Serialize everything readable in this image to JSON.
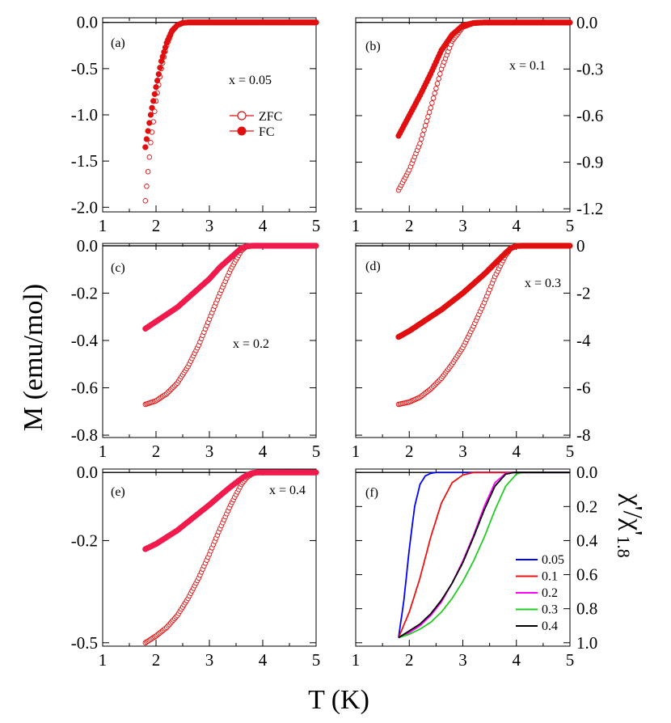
{
  "figure": {
    "xlabel": "T (K)",
    "ylabel_left": "M (emu/mol)",
    "ylabel_right": "χ'/χ'",
    "ylabel_right_sub": "1.8"
  },
  "colors": {
    "zfc": "#e01010",
    "fc": "#e01010",
    "fc_pink": "#f01a4c",
    "axis": "#000000",
    "s005": "#0000ff",
    "s01": "#ee1111",
    "s02": "#ff00ff",
    "s03": "#22cc22",
    "s04": "#000000"
  },
  "chart_data": [
    {
      "id": "a",
      "panel_label": "(a)",
      "type": "scatter",
      "note": "x = 0.05",
      "xlim": [
        1,
        5
      ],
      "ylim": [
        -2.05,
        0.05
      ],
      "xticks": [
        "1",
        "2",
        "3",
        "4",
        "5"
      ],
      "yticks": [
        {
          "v": 0.0,
          "t": "0.0"
        },
        {
          "v": -0.5,
          "t": "-0.5"
        },
        {
          "v": -1.0,
          "t": "-1.0"
        },
        {
          "v": -1.5,
          "t": "-1.5"
        },
        {
          "v": -2.0,
          "t": "-2.0"
        }
      ],
      "yaxis_side": "left",
      "legend": [
        {
          "name": "ZFC",
          "style": "open"
        },
        {
          "name": "FC",
          "style": "filled"
        }
      ],
      "series": [
        {
          "name": "ZFC",
          "style": "open",
          "color": "#e01010",
          "x": [
            1.8,
            1.9,
            2.0,
            2.1,
            2.2,
            2.3,
            2.4,
            2.5,
            2.6,
            2.8,
            3.0,
            4.0,
            5.0
          ],
          "y": [
            -1.93,
            -1.3,
            -0.85,
            -0.5,
            -0.25,
            -0.1,
            -0.03,
            -0.005,
            0.0,
            0.0,
            0.0,
            0.0,
            0.0
          ]
        },
        {
          "name": "FC",
          "style": "filled",
          "color": "#e01010",
          "x": [
            1.8,
            1.9,
            2.0,
            2.1,
            2.2,
            2.3,
            2.4,
            2.5,
            2.6,
            2.8,
            3.0,
            4.0,
            5.0
          ],
          "y": [
            -1.35,
            -1.0,
            -0.7,
            -0.42,
            -0.22,
            -0.09,
            -0.03,
            -0.005,
            0.0,
            0.0,
            0.0,
            0.0,
            0.0
          ]
        }
      ]
    },
    {
      "id": "b",
      "panel_label": "(b)",
      "type": "scatter",
      "note": "x = 0.1",
      "xlim": [
        1,
        5
      ],
      "ylim": [
        -1.22,
        0.03
      ],
      "xticks": [
        "1",
        "2",
        "3",
        "4",
        "5"
      ],
      "yticks": [
        {
          "v": 0.0,
          "t": "0.0"
        },
        {
          "v": -0.3,
          "t": "-0.3"
        },
        {
          "v": -0.6,
          "t": "-0.6"
        },
        {
          "v": -0.9,
          "t": "-0.9"
        },
        {
          "v": -1.2,
          "t": "-1.2"
        }
      ],
      "yaxis_side": "right",
      "series": [
        {
          "name": "ZFC",
          "style": "open",
          "color": "#e01010",
          "x": [
            1.8,
            2.0,
            2.2,
            2.4,
            2.6,
            2.8,
            3.0,
            3.2,
            3.4,
            4.0,
            5.0
          ],
          "y": [
            -1.08,
            -0.95,
            -0.78,
            -0.55,
            -0.3,
            -0.12,
            -0.03,
            -0.005,
            0.0,
            0.0,
            0.0
          ]
        },
        {
          "name": "FC",
          "style": "filled",
          "color": "#e01010",
          "x": [
            1.8,
            2.0,
            2.2,
            2.4,
            2.6,
            2.8,
            3.0,
            3.2,
            3.4,
            4.0,
            5.0
          ],
          "y": [
            -0.73,
            -0.6,
            -0.47,
            -0.33,
            -0.18,
            -0.08,
            -0.02,
            -0.004,
            0.0,
            0.0,
            0.0
          ]
        }
      ]
    },
    {
      "id": "c",
      "panel_label": "(c)",
      "type": "scatter",
      "note": "x = 0.2",
      "xlim": [
        1,
        5
      ],
      "ylim": [
        -0.81,
        0.01
      ],
      "xticks": [
        "1",
        "2",
        "3",
        "4",
        "5"
      ],
      "yticks": [
        {
          "v": 0.0,
          "t": "0.0"
        },
        {
          "v": -0.2,
          "t": "-0.2"
        },
        {
          "v": -0.4,
          "t": "-0.4"
        },
        {
          "v": -0.6,
          "t": "-0.6"
        },
        {
          "v": -0.8,
          "t": "-0.8"
        }
      ],
      "yaxis_side": "left",
      "series": [
        {
          "name": "ZFC",
          "style": "open",
          "color": "#e01010",
          "x": [
            1.8,
            2.0,
            2.2,
            2.4,
            2.6,
            2.8,
            3.0,
            3.2,
            3.4,
            3.6,
            3.7,
            3.8,
            4.0,
            5.0
          ],
          "y": [
            -0.67,
            -0.655,
            -0.625,
            -0.58,
            -0.51,
            -0.42,
            -0.31,
            -0.2,
            -0.1,
            -0.02,
            -0.003,
            0.0,
            0.0,
            0.0
          ]
        },
        {
          "name": "FC",
          "style": "filled",
          "color": "#f01a4c",
          "x": [
            1.8,
            2.0,
            2.2,
            2.4,
            2.6,
            2.8,
            3.0,
            3.2,
            3.4,
            3.6,
            3.7,
            3.8,
            4.0,
            5.0
          ],
          "y": [
            -0.35,
            -0.32,
            -0.29,
            -0.26,
            -0.22,
            -0.18,
            -0.14,
            -0.09,
            -0.05,
            -0.01,
            -0.002,
            0.0,
            0.0,
            0.0
          ]
        }
      ]
    },
    {
      "id": "d",
      "panel_label": "(d)",
      "type": "scatter",
      "note": "x = 0.3",
      "xlim": [
        1,
        5
      ],
      "ylim": [
        -8.1,
        0.1
      ],
      "xticks": [
        "1",
        "2",
        "3",
        "4",
        "5"
      ],
      "yticks": [
        {
          "v": 0,
          "t": "0"
        },
        {
          "v": -2,
          "t": "-2"
        },
        {
          "v": -4,
          "t": "-4"
        },
        {
          "v": -6,
          "t": "-6"
        },
        {
          "v": -8,
          "t": "-8"
        }
      ],
      "yaxis_side": "right",
      "series": [
        {
          "name": "ZFC",
          "style": "open",
          "color": "#e01010",
          "x": [
            1.8,
            2.0,
            2.2,
            2.4,
            2.6,
            2.8,
            3.0,
            3.2,
            3.4,
            3.6,
            3.8,
            3.9,
            4.0,
            4.1,
            5.0
          ],
          "y": [
            -6.7,
            -6.6,
            -6.4,
            -6.05,
            -5.6,
            -5.0,
            -4.3,
            -3.4,
            -2.4,
            -1.3,
            -0.4,
            -0.1,
            -0.01,
            0.0,
            0.0
          ]
        },
        {
          "name": "FC",
          "style": "filled",
          "color": "#e01010",
          "x": [
            1.8,
            2.0,
            2.2,
            2.4,
            2.6,
            2.8,
            3.0,
            3.2,
            3.4,
            3.6,
            3.8,
            3.9,
            4.0,
            4.1,
            5.0
          ],
          "y": [
            -3.85,
            -3.6,
            -3.3,
            -3.0,
            -2.7,
            -2.35,
            -2.0,
            -1.6,
            -1.2,
            -0.75,
            -0.3,
            -0.1,
            -0.01,
            0.0,
            0.0
          ]
        }
      ]
    },
    {
      "id": "e",
      "panel_label": "(e)",
      "type": "scatter",
      "note": "x = 0.4",
      "xlim": [
        1,
        5
      ],
      "ylim": [
        -0.51,
        0.01
      ],
      "xticks": [
        "1",
        "2",
        "3",
        "4",
        "5"
      ],
      "yticks": [
        {
          "v": 0.0,
          "t": "0.0"
        },
        {
          "v": -0.2,
          "t": "-0.2"
        },
        {
          "v": -0.5,
          "t": "-0.5"
        }
      ],
      "yaxis_side": "left",
      "series": [
        {
          "name": "ZFC",
          "style": "open",
          "color": "#e01010",
          "x": [
            1.8,
            2.0,
            2.2,
            2.4,
            2.6,
            2.8,
            3.0,
            3.2,
            3.4,
            3.6,
            3.7,
            3.8,
            3.9,
            4.0,
            5.0
          ],
          "y": [
            -0.5,
            -0.48,
            -0.455,
            -0.42,
            -0.37,
            -0.31,
            -0.24,
            -0.165,
            -0.095,
            -0.035,
            -0.015,
            -0.004,
            0.0,
            0.0,
            0.0
          ]
        },
        {
          "name": "FC",
          "style": "filled",
          "color": "#f01a4c",
          "x": [
            1.8,
            2.0,
            2.2,
            2.4,
            2.6,
            2.8,
            3.0,
            3.2,
            3.4,
            3.6,
            3.7,
            3.8,
            3.9,
            4.0,
            5.0
          ],
          "y": [
            -0.225,
            -0.21,
            -0.19,
            -0.17,
            -0.145,
            -0.12,
            -0.095,
            -0.068,
            -0.042,
            -0.018,
            -0.008,
            -0.002,
            0.0,
            0.0,
            0.0
          ]
        }
      ]
    },
    {
      "id": "f",
      "panel_label": "(f)",
      "type": "line",
      "xlim": [
        1,
        5
      ],
      "ylim": [
        -0.02,
        1.02
      ],
      "invert_y": true,
      "xticks": [
        "1",
        "2",
        "3",
        "4",
        "5"
      ],
      "yticks": [
        {
          "v": 0.0,
          "t": "0.0"
        },
        {
          "v": 0.2,
          "t": "0.2"
        },
        {
          "v": 0.4,
          "t": "0.4"
        },
        {
          "v": 0.6,
          "t": "0.6"
        },
        {
          "v": 0.8,
          "t": "0.8"
        },
        {
          "v": 1.0,
          "t": "1.0"
        }
      ],
      "yaxis_side": "right",
      "series": [
        {
          "name": "0.05",
          "color": "#0000ff",
          "x": [
            1.8,
            1.9,
            2.0,
            2.1,
            2.2,
            2.3,
            2.4,
            2.5,
            2.7,
            3.0,
            5.0
          ],
          "y": [
            0.97,
            0.75,
            0.45,
            0.2,
            0.07,
            0.02,
            0.005,
            0.0,
            0.0,
            0.0,
            0.0
          ]
        },
        {
          "name": "0.1",
          "color": "#ee1111",
          "x": [
            1.8,
            2.0,
            2.2,
            2.4,
            2.6,
            2.8,
            3.0,
            3.2,
            3.4,
            5.0
          ],
          "y": [
            0.97,
            0.82,
            0.62,
            0.38,
            0.18,
            0.06,
            0.015,
            0.0,
            0.0,
            0.0
          ]
        },
        {
          "name": "0.2",
          "color": "#ff00ff",
          "x": [
            1.8,
            2.0,
            2.2,
            2.4,
            2.6,
            2.8,
            3.0,
            3.2,
            3.4,
            3.6,
            3.8,
            4.0,
            5.0
          ],
          "y": [
            0.97,
            0.94,
            0.9,
            0.84,
            0.76,
            0.65,
            0.52,
            0.37,
            0.2,
            0.06,
            0.005,
            0.0,
            0.0
          ]
        },
        {
          "name": "0.3",
          "color": "#22cc22",
          "x": [
            1.8,
            2.0,
            2.2,
            2.4,
            2.6,
            2.8,
            3.0,
            3.2,
            3.4,
            3.6,
            3.8,
            4.0,
            4.1,
            5.0
          ],
          "y": [
            0.97,
            0.95,
            0.92,
            0.88,
            0.82,
            0.74,
            0.64,
            0.52,
            0.38,
            0.22,
            0.08,
            0.01,
            0.0,
            0.0
          ]
        },
        {
          "name": "0.4",
          "color": "#000000",
          "x": [
            1.8,
            2.0,
            2.2,
            2.4,
            2.6,
            2.8,
            3.0,
            3.2,
            3.4,
            3.6,
            3.8,
            3.95,
            4.0,
            5.0
          ],
          "y": [
            0.97,
            0.93,
            0.89,
            0.83,
            0.75,
            0.65,
            0.53,
            0.38,
            0.22,
            0.08,
            0.01,
            0.0,
            0.0,
            0.0
          ]
        }
      ],
      "legend": [
        {
          "name": "0.05",
          "color": "#0000ff"
        },
        {
          "name": "0.1",
          "color": "#ee1111"
        },
        {
          "name": "0.2",
          "color": "#ff00ff"
        },
        {
          "name": "0.3",
          "color": "#22cc22"
        },
        {
          "name": "0.4",
          "color": "#000000"
        }
      ]
    }
  ]
}
